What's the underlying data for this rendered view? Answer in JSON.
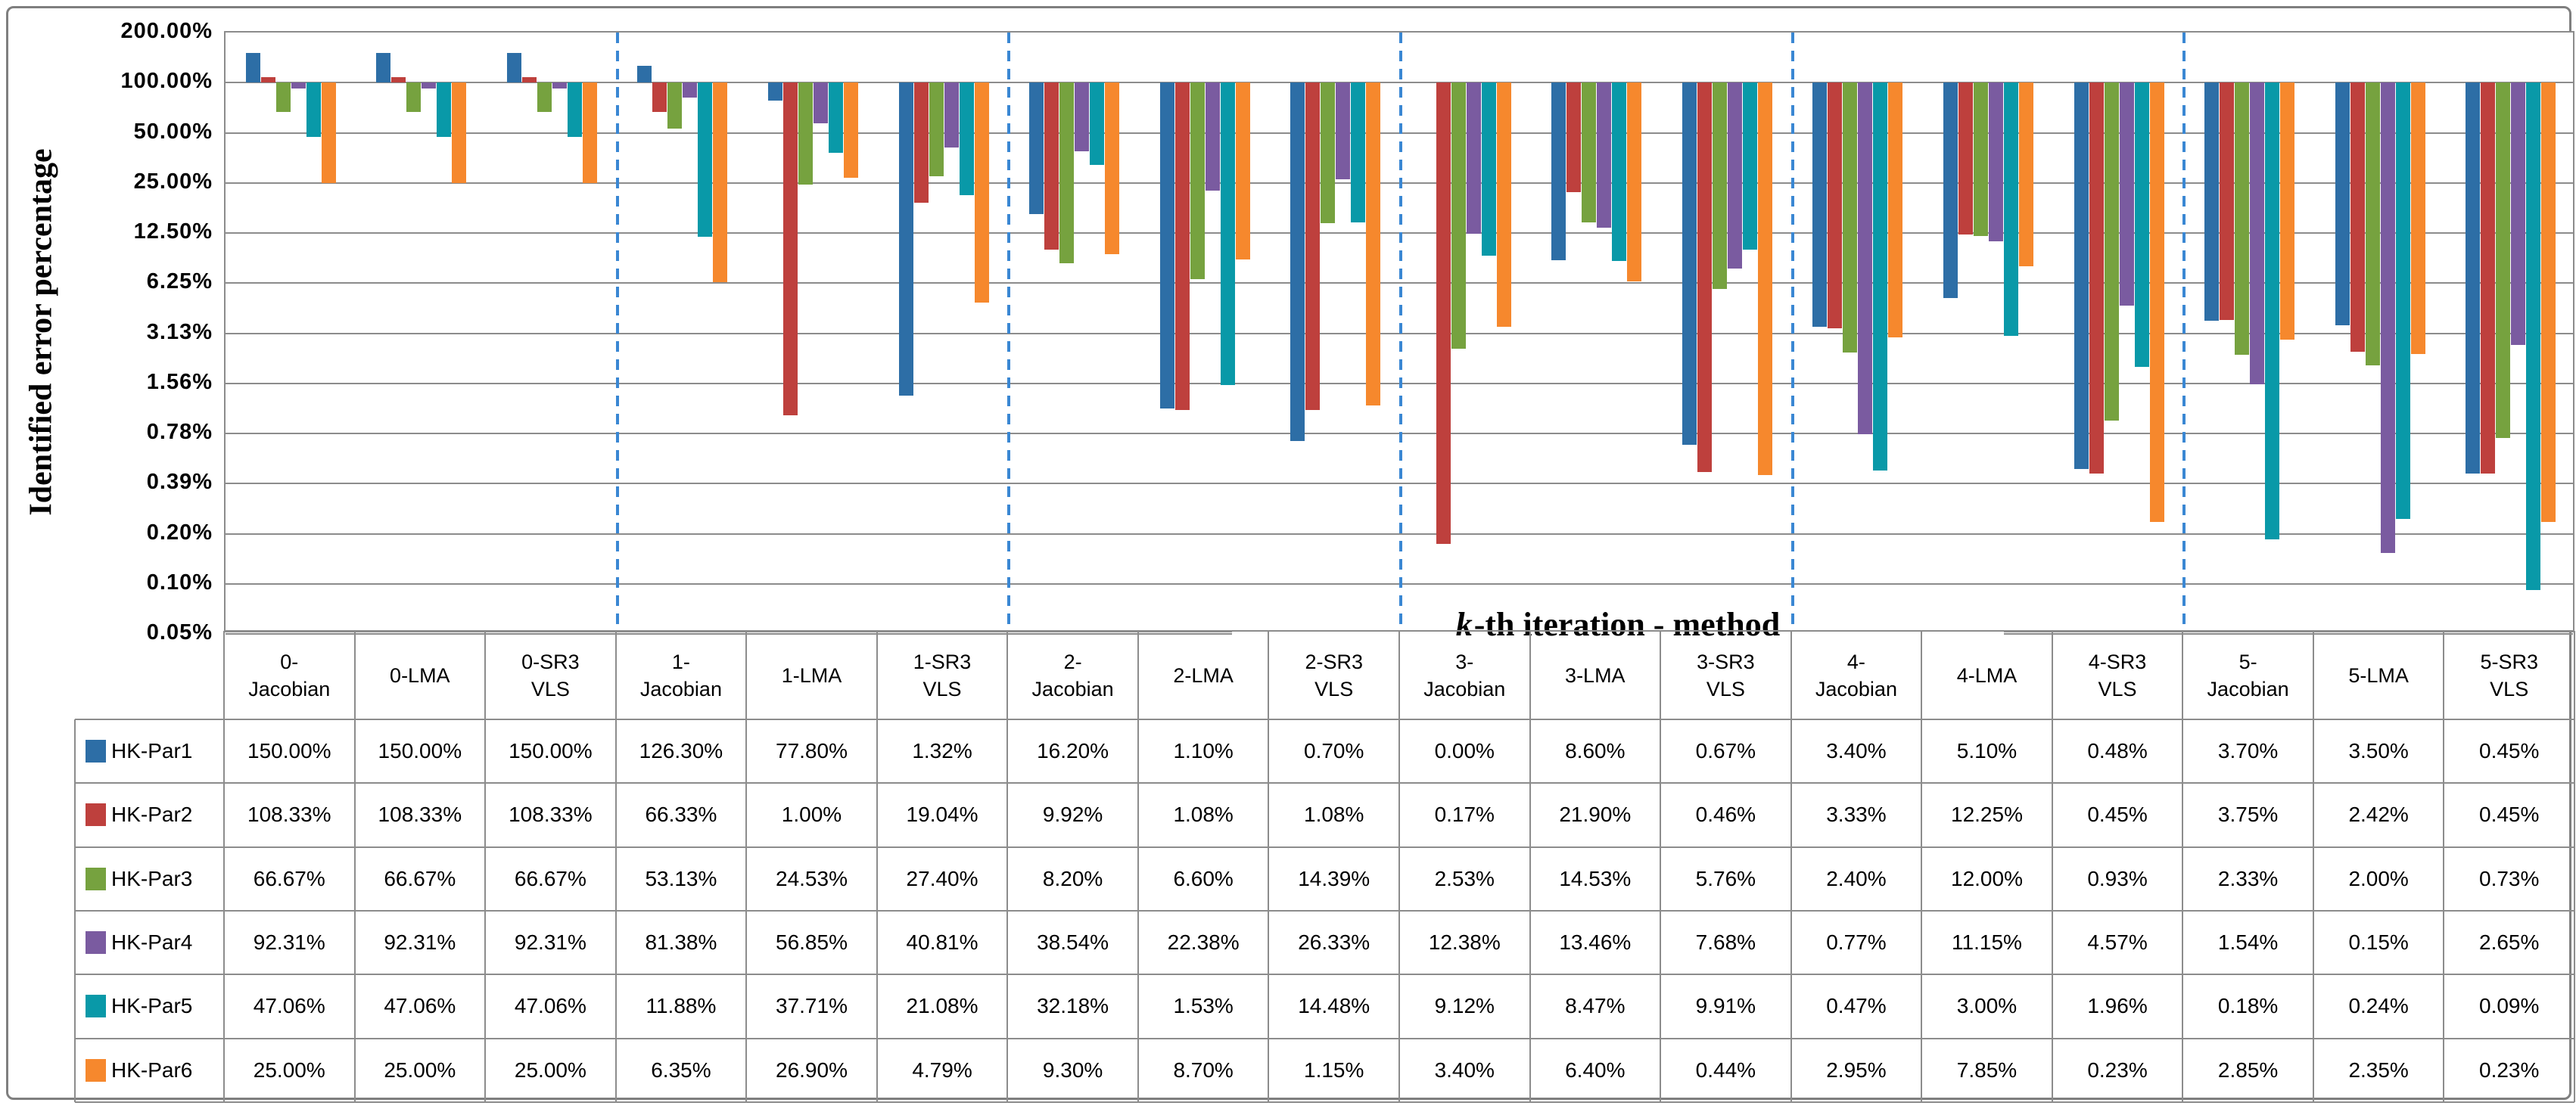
{
  "chart_data": {
    "type": "bar",
    "title": "",
    "xlabel": "k-th iteration - method",
    "xlabel_parts": {
      "italic": "k",
      "rest": "-th iteration - method"
    },
    "ylabel": "Identified error percentage",
    "y_scale": "log2",
    "ylim_percent": [
      0.05,
      200
    ],
    "baseline_percent": 100,
    "grid": "horizontal-major",
    "legend_position": "data-table-left",
    "y_ticks": [
      "200.00%",
      "100.00%",
      "50.00%",
      "25.00%",
      "12.50%",
      "6.25%",
      "3.13%",
      "1.56%",
      "0.78%",
      "0.39%",
      "0.20%",
      "0.10%",
      "0.05%"
    ],
    "categories": [
      "0-Jacobian",
      "0-LMA",
      "0-SR3 VLS",
      "1-Jacobian",
      "1-LMA",
      "1-SR3 VLS",
      "2-Jacobian",
      "2-LMA",
      "2-SR3 VLS",
      "3-Jacobian",
      "3-LMA",
      "3-SR3 VLS",
      "4-Jacobian",
      "4-LMA",
      "4-SR3 VLS",
      "5-Jacobian",
      "5-LMA",
      "5-SR3 VLS"
    ],
    "categories_display": [
      "0-\nJacobian",
      "0-LMA",
      "0-SR3\nVLS",
      "1-\nJacobian",
      "1-LMA",
      "1-SR3\nVLS",
      "2-\nJacobian",
      "2-LMA",
      "2-SR3\nVLS",
      "3-\nJacobian",
      "3-LMA",
      "3-SR3\nVLS",
      "4-\nJacobian",
      "4-LMA",
      "4-SR3\nVLS",
      "5-\nJacobian",
      "5-LMA",
      "5-SR3\nVLS"
    ],
    "group_separators_after_category": [
      3,
      6,
      9,
      12,
      15
    ],
    "separator_color": "#3a87d3",
    "series": [
      {
        "name": "HK-Par1",
        "color": "#2d6ea6",
        "values": [
          150.0,
          150.0,
          150.0,
          126.3,
          77.8,
          1.32,
          16.2,
          1.1,
          0.7,
          0.0,
          8.6,
          0.67,
          3.4,
          5.1,
          0.48,
          3.7,
          3.5,
          0.45
        ]
      },
      {
        "name": "HK-Par2",
        "color": "#be403d",
        "values": [
          108.33,
          108.33,
          108.33,
          66.33,
          1.0,
          19.04,
          9.92,
          1.08,
          1.08,
          0.17,
          21.9,
          0.46,
          3.33,
          12.25,
          0.45,
          3.75,
          2.42,
          0.45
        ]
      },
      {
        "name": "HK-Par3",
        "color": "#76a23f",
        "values": [
          66.67,
          66.67,
          66.67,
          53.13,
          24.53,
          27.4,
          8.2,
          6.6,
          14.39,
          2.53,
          14.53,
          5.76,
          2.4,
          12.0,
          0.93,
          2.33,
          2.0,
          0.73
        ]
      },
      {
        "name": "HK-Par4",
        "color": "#7a5ba0",
        "values": [
          92.31,
          92.31,
          92.31,
          81.38,
          56.85,
          40.81,
          38.54,
          22.38,
          26.33,
          12.38,
          13.46,
          7.68,
          0.77,
          11.15,
          4.57,
          1.54,
          0.15,
          2.65
        ]
      },
      {
        "name": "HK-Par5",
        "color": "#0999a8",
        "values": [
          47.06,
          47.06,
          47.06,
          11.88,
          37.71,
          21.08,
          32.18,
          1.53,
          14.48,
          9.12,
          8.47,
          9.91,
          0.47,
          3.0,
          1.96,
          0.18,
          0.24,
          0.09
        ]
      },
      {
        "name": "HK-Par6",
        "color": "#f6882d",
        "values": [
          25.0,
          25.0,
          25.0,
          6.35,
          26.9,
          4.79,
          9.3,
          8.7,
          1.15,
          3.4,
          6.4,
          0.44,
          2.95,
          7.85,
          0.23,
          2.85,
          2.35,
          0.23
        ]
      }
    ],
    "value_format": "0.00%"
  }
}
